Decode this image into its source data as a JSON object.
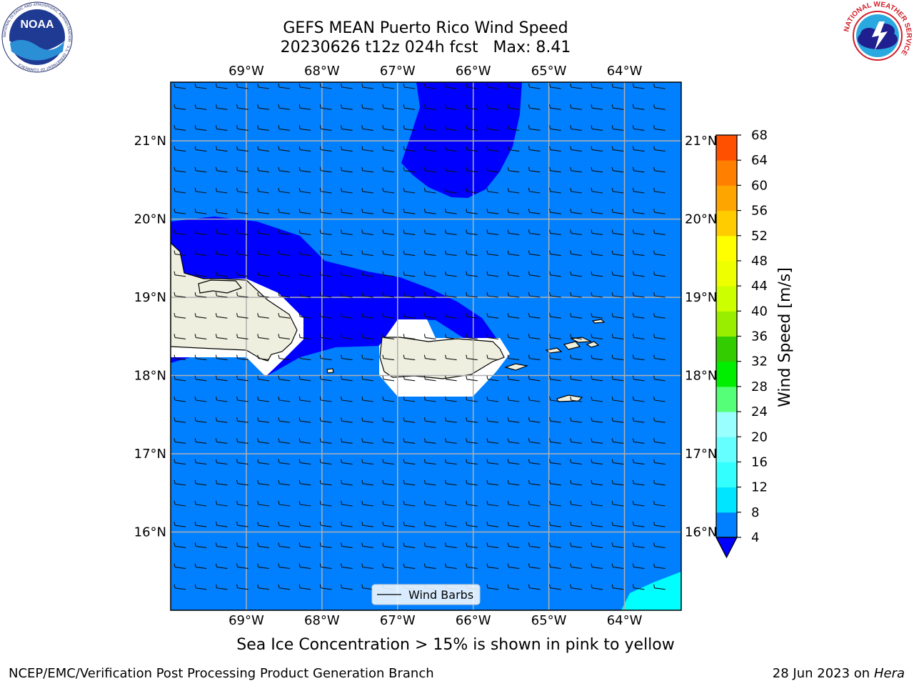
{
  "header": {
    "title_line1": "GEFS MEAN Puerto Rico Wind Speed",
    "title_line2": "20230626 t12z 024h fcst   Max: 8.41"
  },
  "logos": {
    "noaa_text": "NOAA",
    "noaa_ring": "NATIONAL OCEANIC AND ATMOSPHERIC ADMINISTRATION · U.S. DEPARTMENT OF COMMERCE",
    "nws_ring": "NATIONAL WEATHER SERVICE"
  },
  "chart_data": {
    "type": "heatmap",
    "title": "GEFS MEAN Puerto Rico Wind Speed",
    "subtitle": "20230626 t12z 024h fcst   Max: 8.41",
    "max_value": 8.41,
    "x_ticks": [
      "69°W",
      "68°W",
      "67°W",
      "66°W",
      "65°W",
      "64°W"
    ],
    "x_tick_values": [
      -69,
      -68,
      -67,
      -66,
      -65,
      -64
    ],
    "y_ticks": [
      "21°N",
      "20°N",
      "19°N",
      "18°N",
      "17°N",
      "16°N"
    ],
    "y_tick_values": [
      21,
      20,
      19,
      18,
      17,
      16
    ],
    "xlim": [
      -70.0,
      -63.25
    ],
    "ylim": [
      15.0,
      21.75
    ],
    "grid": true,
    "colorbar": {
      "label": "Wind Speed [m/s]",
      "ticks": [
        4,
        8,
        12,
        16,
        20,
        24,
        28,
        32,
        36,
        40,
        44,
        48,
        52,
        56,
        60,
        64,
        68
      ],
      "colors": [
        "#0080ff",
        "#00e5ff",
        "#33ffff",
        "#66ffff",
        "#99ffff",
        "#55ff77",
        "#00ee00",
        "#33cc00",
        "#99ee00",
        "#ccff00",
        "#eeff00",
        "#ffff00",
        "#ffcc00",
        "#ffa500",
        "#ff8000",
        "#ff5000",
        "#ff2000",
        "#ff0000"
      ],
      "extend_min_color": "#0000ff"
    },
    "fill_colors": {
      "ocean_low": "#0000ff",
      "ocean_4_8": "#0080ff",
      "ocean_8_12": "#00ffff",
      "land": "#efefdf",
      "masked": "#ffffff"
    },
    "legend": {
      "label": "Wind Barbs",
      "placement": "lower center"
    },
    "wind_barbs": {
      "direction": "easterly, slight northeasterly tilt",
      "typical_speed_ms": 6
    }
  },
  "footer": {
    "note": "Sea Ice Concentration > 15% is shown in pink to yellow",
    "branch": "NCEP/EMC/Verification Post Processing Product Generation Branch",
    "date": "28 Jun 2023 on",
    "host": "Hera"
  }
}
